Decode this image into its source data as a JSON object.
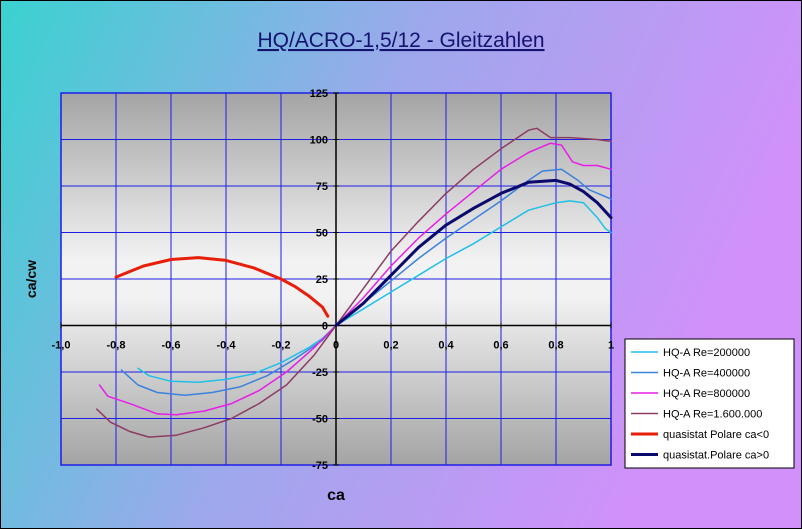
{
  "chart_data": {
    "type": "line",
    "title": "HQ/ACRO-1,5/12 - Gleitzahlen",
    "xlabel": "ca",
    "ylabel": "ca/cw",
    "xlim": [
      -1.0,
      1.0
    ],
    "ylim": [
      -75,
      125
    ],
    "x_ticks": [
      "-1,0",
      "-0,8",
      "-0,6",
      "-0,4",
      "-0,2",
      "0",
      "0,2",
      "0,4",
      "0,6",
      "0,8",
      "1"
    ],
    "y_ticks": [
      "125",
      "100",
      "75",
      "50",
      "25",
      "0",
      "-25",
      "-50",
      "-75"
    ],
    "grid": true,
    "legend_position": "right",
    "series": [
      {
        "name": "HQ-A Re=200000",
        "color": "#1fc0e8",
        "width": 1.5,
        "points": [
          [
            -0.72,
            -23
          ],
          [
            -0.68,
            -27
          ],
          [
            -0.6,
            -30
          ],
          [
            -0.5,
            -30.5
          ],
          [
            -0.4,
            -29
          ],
          [
            -0.3,
            -26
          ],
          [
            -0.2,
            -20
          ],
          [
            -0.1,
            -12
          ],
          [
            -0.05,
            -7
          ],
          [
            0,
            0
          ],
          [
            0.1,
            9
          ],
          [
            0.2,
            18
          ],
          [
            0.3,
            27
          ],
          [
            0.4,
            36
          ],
          [
            0.5,
            44
          ],
          [
            0.6,
            53
          ],
          [
            0.7,
            62
          ],
          [
            0.8,
            66
          ],
          [
            0.85,
            67
          ],
          [
            0.9,
            66
          ],
          [
            0.95,
            58
          ],
          [
            0.98,
            52
          ],
          [
            1.0,
            50
          ]
        ]
      },
      {
        "name": "HQ-A Re=400000",
        "color": "#3c82dc",
        "width": 1.5,
        "points": [
          [
            -0.78,
            -24
          ],
          [
            -0.72,
            -32
          ],
          [
            -0.65,
            -36
          ],
          [
            -0.55,
            -37.5
          ],
          [
            -0.45,
            -36
          ],
          [
            -0.35,
            -33
          ],
          [
            -0.25,
            -27
          ],
          [
            -0.15,
            -18
          ],
          [
            -0.05,
            -8
          ],
          [
            0,
            0
          ],
          [
            0.1,
            12
          ],
          [
            0.2,
            24
          ],
          [
            0.3,
            36
          ],
          [
            0.4,
            47
          ],
          [
            0.5,
            57
          ],
          [
            0.6,
            67
          ],
          [
            0.7,
            78
          ],
          [
            0.75,
            83
          ],
          [
            0.82,
            84
          ],
          [
            0.88,
            78
          ],
          [
            0.92,
            73
          ],
          [
            1.0,
            68
          ]
        ]
      },
      {
        "name": "HQ-A Re=800000",
        "color": "#e61ee6",
        "width": 1.5,
        "points": [
          [
            -0.86,
            -32
          ],
          [
            -0.83,
            -38
          ],
          [
            -0.75,
            -42
          ],
          [
            -0.65,
            -47.5
          ],
          [
            -0.58,
            -48
          ],
          [
            -0.48,
            -46
          ],
          [
            -0.38,
            -42
          ],
          [
            -0.28,
            -35
          ],
          [
            -0.18,
            -25
          ],
          [
            -0.08,
            -12
          ],
          [
            0,
            0
          ],
          [
            0.1,
            15
          ],
          [
            0.2,
            32
          ],
          [
            0.3,
            47
          ],
          [
            0.4,
            60
          ],
          [
            0.5,
            72
          ],
          [
            0.6,
            84
          ],
          [
            0.7,
            93
          ],
          [
            0.78,
            98
          ],
          [
            0.82,
            97
          ],
          [
            0.86,
            88
          ],
          [
            0.9,
            86
          ],
          [
            0.95,
            86
          ],
          [
            1.0,
            84
          ]
        ]
      },
      {
        "name": "HQ-A Re=1.600.000",
        "color": "#8c3c64",
        "width": 1.5,
        "points": [
          [
            -0.87,
            -45
          ],
          [
            -0.82,
            -52
          ],
          [
            -0.75,
            -57
          ],
          [
            -0.68,
            -60
          ],
          [
            -0.58,
            -59
          ],
          [
            -0.48,
            -55
          ],
          [
            -0.38,
            -50
          ],
          [
            -0.28,
            -42
          ],
          [
            -0.18,
            -32
          ],
          [
            -0.08,
            -16
          ],
          [
            0,
            0
          ],
          [
            0.1,
            20
          ],
          [
            0.2,
            40
          ],
          [
            0.3,
            56
          ],
          [
            0.4,
            71
          ],
          [
            0.5,
            84
          ],
          [
            0.6,
            95
          ],
          [
            0.7,
            105
          ],
          [
            0.73,
            106
          ],
          [
            0.78,
            101
          ],
          [
            0.85,
            101
          ],
          [
            0.95,
            100
          ],
          [
            1.0,
            99
          ]
        ]
      },
      {
        "name": "quasistat Polare ca<0",
        "color": "#e61e0a",
        "width": 3,
        "points": [
          [
            -0.8,
            26
          ],
          [
            -0.7,
            32
          ],
          [
            -0.6,
            35.5
          ],
          [
            -0.5,
            36.5
          ],
          [
            -0.4,
            35
          ],
          [
            -0.3,
            31
          ],
          [
            -0.2,
            25
          ],
          [
            -0.15,
            21
          ],
          [
            -0.1,
            16
          ],
          [
            -0.05,
            10
          ],
          [
            -0.03,
            5
          ]
        ]
      },
      {
        "name": "quasistat.Polare ca>0",
        "color": "#0a0a6e",
        "width": 3,
        "points": [
          [
            0,
            0
          ],
          [
            0.05,
            6
          ],
          [
            0.1,
            12
          ],
          [
            0.2,
            27
          ],
          [
            0.3,
            42
          ],
          [
            0.4,
            54
          ],
          [
            0.5,
            63
          ],
          [
            0.6,
            71
          ],
          [
            0.7,
            77
          ],
          [
            0.8,
            78
          ],
          [
            0.85,
            76
          ],
          [
            0.9,
            72
          ],
          [
            0.95,
            66
          ],
          [
            1.0,
            58
          ]
        ]
      }
    ]
  }
}
